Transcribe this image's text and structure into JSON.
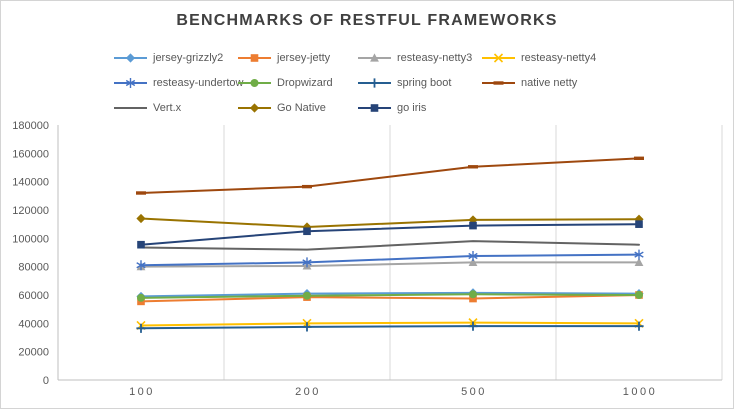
{
  "chart_data": {
    "type": "line",
    "title": "BENCHMARKS OF RESTFUL FRAMEWORKS",
    "x_categories": [
      "100",
      "200",
      "500",
      "1000"
    ],
    "y_ticks": [
      "0",
      "20000",
      "40000",
      "60000",
      "80000",
      "100000",
      "120000",
      "140000",
      "160000",
      "180000"
    ],
    "ylim": [
      0,
      180000
    ],
    "grid": "vertical-only",
    "legend_position": "top",
    "title_color": "#404040",
    "axis_color": "#bfbfbf",
    "grid_color": "#d9d9d9",
    "tick_label_color": "#595959",
    "series": [
      {
        "name": "jersey-grizzly2",
        "color": "#5B9BD5",
        "marker": "diamond",
        "values": [
          59000,
          61000,
          61500,
          61000
        ]
      },
      {
        "name": "jersey-jetty",
        "color": "#ED7D31",
        "marker": "square",
        "values": [
          55500,
          58500,
          57500,
          60000
        ]
      },
      {
        "name": "resteasy-netty3",
        "color": "#A5A5A5",
        "marker": "triangle",
        "values": [
          80000,
          80500,
          83000,
          83000
        ]
      },
      {
        "name": "resteasy-netty4",
        "color": "#FFC000",
        "marker": "x",
        "values": [
          38500,
          40000,
          40500,
          40000
        ]
      },
      {
        "name": "resteasy-undertow",
        "color": "#4472C4",
        "marker": "asterisk",
        "values": [
          81000,
          83000,
          87500,
          88500
        ]
      },
      {
        "name": "Dropwizard",
        "color": "#70AD47",
        "marker": "circle",
        "values": [
          58000,
          59500,
          60500,
          60000
        ]
      },
      {
        "name": "spring boot",
        "color": "#255E91",
        "marker": "plus",
        "values": [
          36500,
          37500,
          38000,
          38000
        ]
      },
      {
        "name": "native netty",
        "color": "#9E480E",
        "marker": "dash",
        "values": [
          132000,
          136500,
          150500,
          156500
        ]
      },
      {
        "name": "Vert.x",
        "color": "#636363",
        "marker": "none",
        "values": [
          93500,
          92000,
          98000,
          95500
        ]
      },
      {
        "name": "Go Native",
        "color": "#997300",
        "marker": "diamond",
        "values": [
          114000,
          108000,
          113000,
          113500
        ]
      },
      {
        "name": "go iris",
        "color": "#264478",
        "marker": "square",
        "values": [
          95500,
          105000,
          109000,
          110000
        ]
      }
    ]
  }
}
